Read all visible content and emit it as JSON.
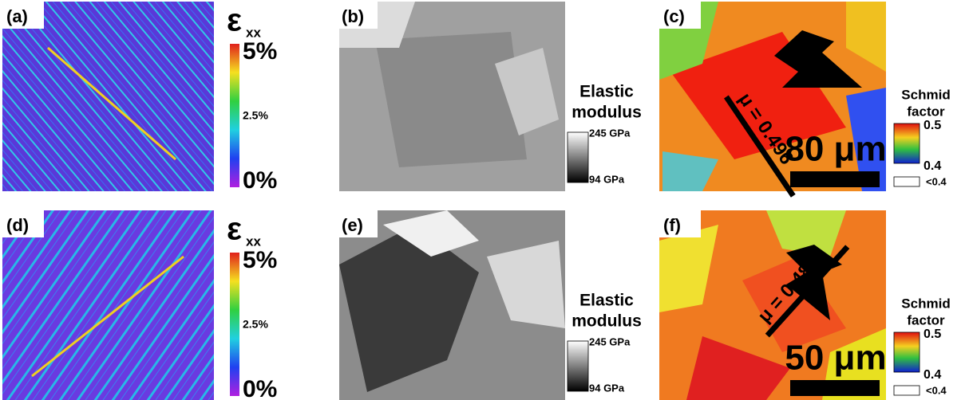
{
  "rows": [
    {
      "strain": {
        "label": "(a)",
        "symbol": "ε",
        "subscript": "xx",
        "ticks": [
          "5%",
          "2.5%",
          "0%"
        ]
      },
      "modulus": {
        "label": "(b)",
        "title": [
          "Elastic",
          "modulus"
        ],
        "ticks": [
          "245 GPa",
          "94 GPa"
        ]
      },
      "schmid": {
        "label": "(c)",
        "annotation": "μ = 0.496",
        "scale_bar": "80 μm",
        "title": [
          "Schmid",
          "factor"
        ],
        "ticks": [
          "0.5",
          "0.4"
        ],
        "below": "<0.4"
      }
    },
    {
      "strain": {
        "label": "(d)",
        "symbol": "ε",
        "subscript": "xx",
        "ticks": [
          "5%",
          "2.5%",
          "0%"
        ]
      },
      "modulus": {
        "label": "(e)",
        "title": [
          "Elastic",
          "modulus"
        ],
        "ticks": [
          "245 GPa",
          "94 GPa"
        ]
      },
      "schmid": {
        "label": "(f)",
        "annotation": "μ = 0.484",
        "scale_bar": "50 μm",
        "title": [
          "Schmid",
          "factor"
        ],
        "ticks": [
          "0.5",
          "0.4"
        ],
        "below": "<0.4"
      }
    }
  ]
}
